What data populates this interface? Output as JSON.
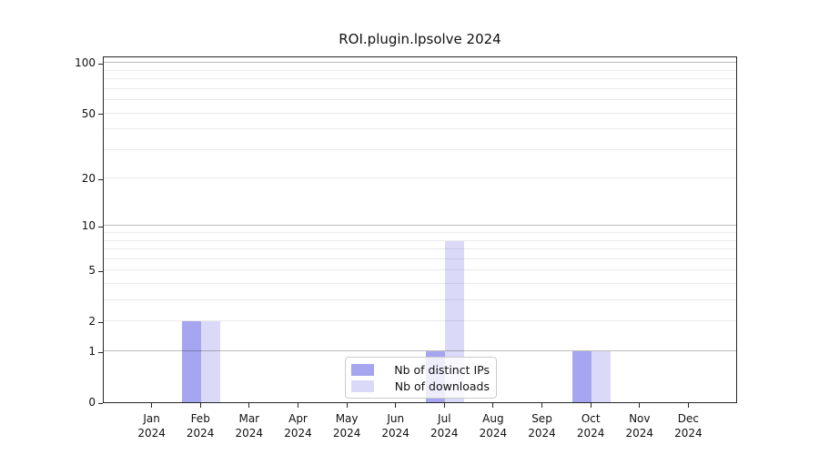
{
  "title": "ROI.plugin.lpsolve 2024",
  "chart_data": {
    "type": "bar",
    "title": "ROI.plugin.lpsolve 2024",
    "xlabel": "",
    "ylabel": "",
    "categories": [
      "Jan",
      "Feb",
      "Mar",
      "Apr",
      "May",
      "Jun",
      "Jul",
      "Aug",
      "Sep",
      "Oct",
      "Nov",
      "Dec"
    ],
    "category_year": "2024",
    "series": [
      {
        "name": "Nb of distinct IPs",
        "color": "#a5a5f0",
        "values": [
          0,
          2,
          0,
          0,
          0,
          0,
          1,
          0,
          0,
          1,
          0,
          0
        ]
      },
      {
        "name": "Nb of downloads",
        "color": "#dadaf8",
        "values": [
          0,
          2,
          0,
          0,
          0,
          0,
          8,
          0,
          0,
          1,
          0,
          0
        ]
      }
    ],
    "yscale": "log10(1+x)",
    "ylim": [
      0,
      111
    ],
    "ytick_labels": [
      0,
      1,
      2,
      5,
      10,
      20,
      50,
      100
    ],
    "major_gridlines": [
      1,
      10,
      100
    ],
    "minor_gridlines": [
      2,
      3,
      4,
      5,
      6,
      7,
      8,
      9,
      20,
      30,
      40,
      50,
      60,
      70,
      80,
      90
    ],
    "grid": true,
    "legend_position": "lower-center-inside"
  }
}
